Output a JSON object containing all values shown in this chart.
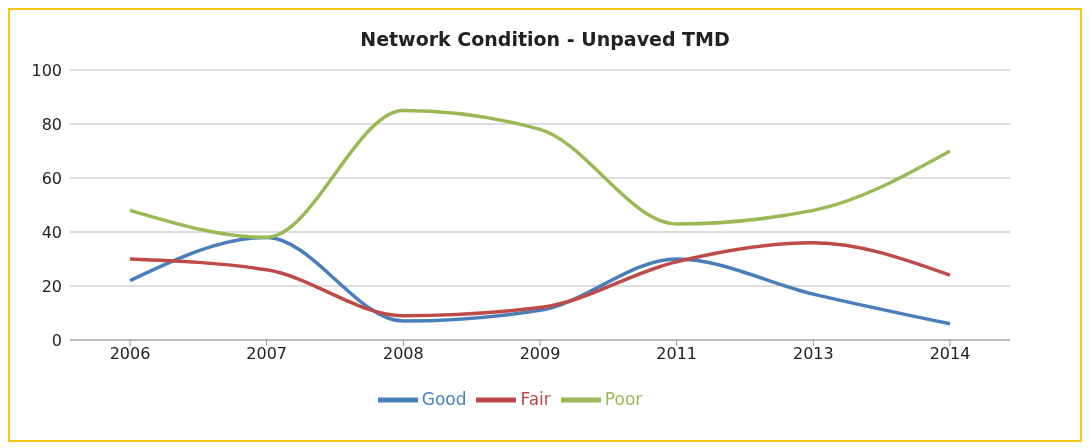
{
  "chart_data": {
    "type": "line",
    "title": "Network Condition - Unpaved TMD",
    "categories": [
      "2006",
      "2007",
      "2008",
      "2009",
      "2011",
      "2013",
      "2014"
    ],
    "series": [
      {
        "name": "Good",
        "color": "#4a7ebb",
        "values": [
          22,
          38,
          7,
          11,
          30,
          17,
          6
        ]
      },
      {
        "name": "Fair",
        "color": "#be4b48",
        "values": [
          30,
          26,
          9,
          12,
          29,
          36,
          24
        ]
      },
      {
        "name": "Poor",
        "color": "#98b954",
        "values": [
          48,
          38,
          85,
          78,
          43,
          48,
          70
        ]
      }
    ],
    "ylim": [
      0,
      100
    ],
    "yticks": [
      0,
      20,
      40,
      60,
      80,
      100
    ],
    "grid": "y",
    "legend": "bottom",
    "marker": "none",
    "line_style": "solid"
  }
}
